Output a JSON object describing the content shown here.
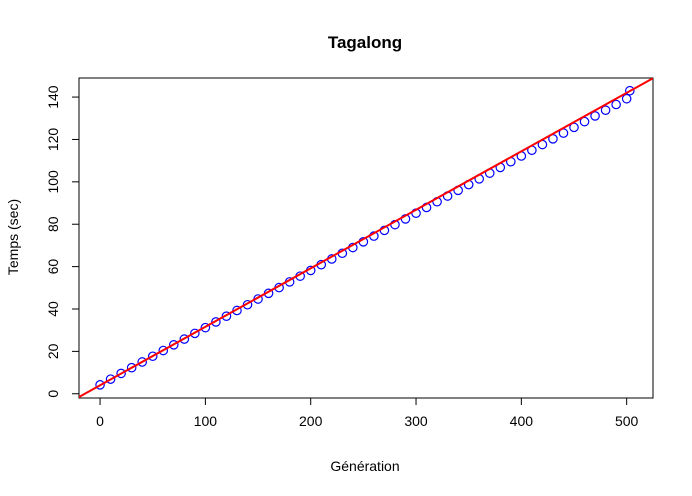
{
  "chart_data": {
    "type": "scatter",
    "title": "Tagalong",
    "xlabel": "Génération",
    "ylabel": "Temps (sec)",
    "xlim": [
      -20,
      525
    ],
    "ylim": [
      -2,
      149
    ],
    "x_ticks": [
      0,
      100,
      200,
      300,
      400,
      500
    ],
    "y_ticks": [
      0,
      20,
      40,
      60,
      80,
      100,
      120,
      140
    ],
    "grid": false,
    "points": {
      "marker": "circle-open",
      "color": "#0000ff",
      "x": [
        0,
        10,
        20,
        30,
        40,
        50,
        60,
        70,
        80,
        90,
        100,
        110,
        120,
        130,
        140,
        150,
        160,
        170,
        180,
        190,
        200,
        210,
        220,
        230,
        240,
        250,
        260,
        270,
        280,
        290,
        300,
        310,
        320,
        330,
        340,
        350,
        360,
        370,
        380,
        390,
        400,
        410,
        420,
        430,
        440,
        450,
        460,
        470,
        480,
        490,
        500,
        503
      ],
      "y": [
        4.2,
        6.9,
        9.6,
        12.3,
        15.0,
        17.7,
        20.4,
        23.1,
        25.8,
        28.5,
        31.2,
        33.9,
        36.6,
        39.3,
        42.0,
        44.7,
        47.4,
        50.1,
        52.8,
        55.5,
        58.2,
        60.9,
        63.6,
        66.3,
        69.0,
        71.7,
        74.4,
        77.1,
        79.8,
        82.5,
        85.2,
        87.9,
        90.6,
        93.3,
        96.0,
        98.7,
        101.4,
        104.1,
        106.8,
        109.5,
        112.2,
        114.9,
        117.6,
        120.3,
        123.0,
        125.7,
        128.4,
        131.1,
        133.8,
        136.5,
        139.2,
        143.0
      ]
    },
    "fit_line": {
      "color": "#ff0000",
      "intercept": 4.0,
      "slope": 0.276
    }
  }
}
